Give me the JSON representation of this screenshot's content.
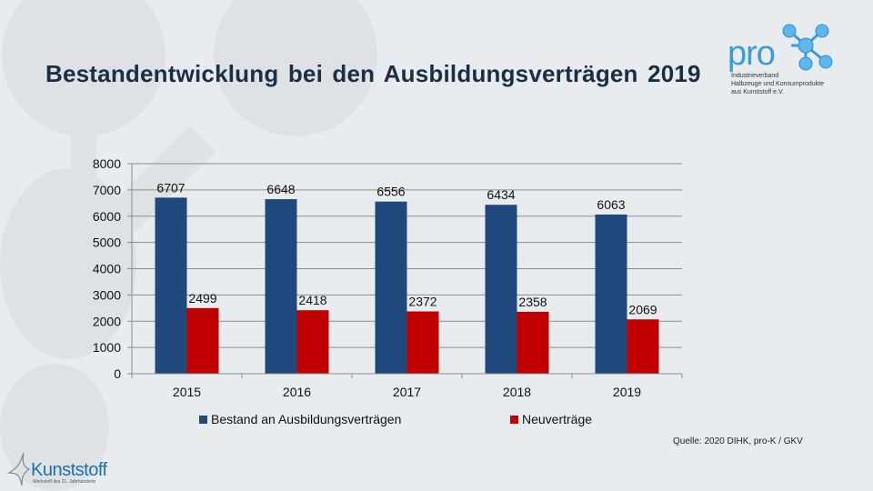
{
  "slide": {
    "title": "Bestandentwicklung bei den Ausbildungsverträgen 2019",
    "source": "Quelle: 2020 DIHK, pro-K / GKV"
  },
  "logo_prok": {
    "wordmark": "pro",
    "subtitle_lines": [
      "Industrieverband",
      "Halbzeuge und Konsumprodukte",
      "aus Kunststoff e.V."
    ]
  },
  "logo_kunststoff": {
    "wordmark": "Kunststoff",
    "tagline": "Werkstoff des 21. Jahrhunderts"
  },
  "colors": {
    "series_1": "#1f497d",
    "series_2": "#c00000",
    "title": "#1b2f44",
    "logo_blue": "#3a9bd9"
  },
  "chart_data": {
    "type": "bar",
    "title": "Bestandentwicklung bei den Ausbildungsverträgen 2019",
    "xlabel": "",
    "ylabel": "",
    "categories": [
      "2015",
      "2016",
      "2017",
      "2018",
      "2019"
    ],
    "series": [
      {
        "name": "Bestand an Ausbildungsverträgen",
        "values": [
          6707,
          6648,
          6556,
          6434,
          6063
        ],
        "color": "#1f497d"
      },
      {
        "name": "Neuverträge",
        "values": [
          2499,
          2418,
          2372,
          2358,
          2069
        ],
        "color": "#c00000"
      }
    ],
    "ylim": [
      0,
      8000
    ],
    "yticks": [
      "0",
      "1000",
      "2000",
      "3000",
      "4000",
      "5000",
      "6000",
      "7000",
      "8000"
    ],
    "grid": true,
    "legend": "bottom",
    "data_labels": true
  }
}
